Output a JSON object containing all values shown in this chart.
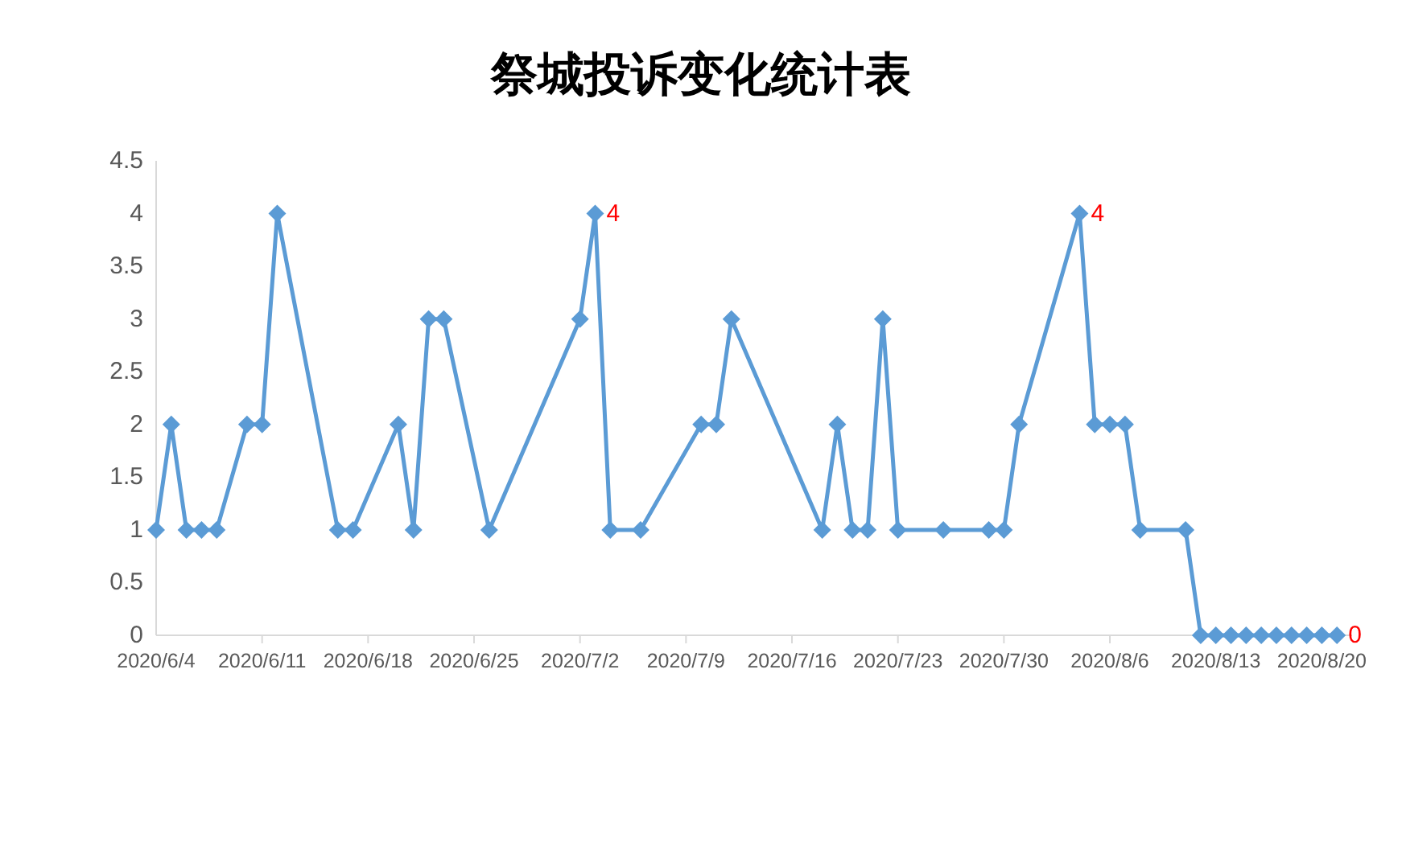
{
  "chart_data": {
    "type": "line",
    "title": "祭城投诉变化统计表",
    "x": [
      "2020-06-04",
      "2020-06-05",
      "2020-06-06",
      "2020-06-07",
      "2020-06-08",
      "2020-06-10",
      "2020-06-11",
      "2020-06-12",
      "2020-06-16",
      "2020-06-17",
      "2020-06-20",
      "2020-06-21",
      "2020-06-22",
      "2020-06-23",
      "2020-06-26",
      "2020-07-02",
      "2020-07-03",
      "2020-07-04",
      "2020-07-06",
      "2020-07-10",
      "2020-07-11",
      "2020-07-12",
      "2020-07-18",
      "2020-07-19",
      "2020-07-20",
      "2020-07-21",
      "2020-07-22",
      "2020-07-23",
      "2020-07-26",
      "2020-07-29",
      "2020-07-30",
      "2020-07-31",
      "2020-08-04",
      "2020-08-05",
      "2020-08-06",
      "2020-08-07",
      "2020-08-08",
      "2020-08-11",
      "2020-08-12",
      "2020-08-13",
      "2020-08-14",
      "2020-08-15",
      "2020-08-16",
      "2020-08-17",
      "2020-08-18",
      "2020-08-19",
      "2020-08-20",
      "2020-08-21"
    ],
    "series": [
      {
        "color": "#5b9bd5",
        "values": [
          1,
          2,
          1,
          1,
          1,
          2,
          2,
          4,
          1,
          1,
          2,
          1,
          3,
          3,
          1,
          3,
          4,
          1,
          1,
          2,
          2,
          3,
          1,
          2,
          1,
          1,
          3,
          1,
          1,
          1,
          1,
          2,
          4,
          2,
          2,
          2,
          1,
          1,
          0,
          0,
          0,
          0,
          0,
          0,
          0,
          0,
          0,
          0
        ],
        "value_labels": [
          null,
          null,
          null,
          null,
          null,
          null,
          null,
          null,
          null,
          null,
          null,
          null,
          null,
          null,
          null,
          null,
          "4",
          null,
          null,
          null,
          null,
          null,
          null,
          null,
          null,
          null,
          null,
          null,
          null,
          null,
          null,
          null,
          "4",
          null,
          null,
          null,
          null,
          null,
          null,
          null,
          null,
          null,
          null,
          null,
          null,
          null,
          null,
          "0"
        ]
      }
    ],
    "xlim": [
      "2020-06-04",
      "2020-08-22"
    ],
    "xticks": [
      {
        "value": "2020-06-04",
        "label": "2020/6/4"
      },
      {
        "value": "2020-06-11",
        "label": "2020/6/11"
      },
      {
        "value": "2020-06-18",
        "label": "2020/6/18"
      },
      {
        "value": "2020-06-25",
        "label": "2020/6/25"
      },
      {
        "value": "2020-07-02",
        "label": "2020/7/2"
      },
      {
        "value": "2020-07-09",
        "label": "2020/7/9"
      },
      {
        "value": "2020-07-16",
        "label": "2020/7/16"
      },
      {
        "value": "2020-07-23",
        "label": "2020/7/23"
      },
      {
        "value": "2020-07-30",
        "label": "2020/7/30"
      },
      {
        "value": "2020-08-06",
        "label": "2020/8/6"
      },
      {
        "value": "2020-08-13",
        "label": "2020/8/13"
      },
      {
        "value": "2020-08-20",
        "label": "2020/8/20"
      }
    ],
    "ylim": [
      0,
      4.5
    ],
    "yticks": [
      0,
      0.5,
      1,
      1.5,
      2,
      2.5,
      3,
      3.5,
      4,
      4.5
    ],
    "grid": false,
    "marker": "diamond",
    "line_style": "solid"
  }
}
